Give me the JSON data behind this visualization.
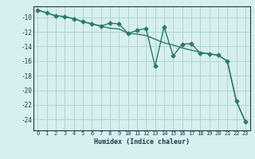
{
  "x": [
    0,
    1,
    2,
    3,
    4,
    5,
    6,
    7,
    8,
    9,
    10,
    11,
    12,
    13,
    14,
    15,
    16,
    17,
    18,
    19,
    20,
    21,
    22,
    23
  ],
  "y_line": [
    -9.0,
    -9.4,
    -9.8,
    -9.9,
    -10.2,
    -10.6,
    -10.9,
    -11.2,
    -11.5,
    -11.6,
    -12.2,
    -12.3,
    -12.5,
    -13.0,
    -13.5,
    -13.8,
    -14.2,
    -14.5,
    -14.8,
    -15.0,
    -15.2,
    -16.0,
    -21.5,
    -24.3
  ],
  "y_scatter": [
    -9.0,
    -9.4,
    -9.8,
    -9.9,
    -10.2,
    -10.6,
    -10.9,
    -11.2,
    -10.8,
    -10.9,
    -12.2,
    -11.8,
    -11.5,
    -16.7,
    -11.3,
    -15.3,
    -13.7,
    -13.6,
    -14.9,
    -15.0,
    -15.2,
    -16.0,
    -21.5,
    -24.3
  ],
  "color": "#2a7a6a",
  "bg_color": "#d8efef",
  "grid_color": "#aed4d4",
  "xlabel": "Humidex (Indice chaleur)",
  "xlim": [
    -0.5,
    23.5
  ],
  "ylim": [
    -25.5,
    -8.5
  ],
  "yticks": [
    -24,
    -22,
    -20,
    -18,
    -16,
    -14,
    -12,
    -10
  ],
  "xticks": [
    0,
    1,
    2,
    3,
    4,
    5,
    6,
    7,
    8,
    9,
    10,
    11,
    12,
    13,
    14,
    15,
    16,
    17,
    18,
    19,
    20,
    21,
    22,
    23
  ]
}
